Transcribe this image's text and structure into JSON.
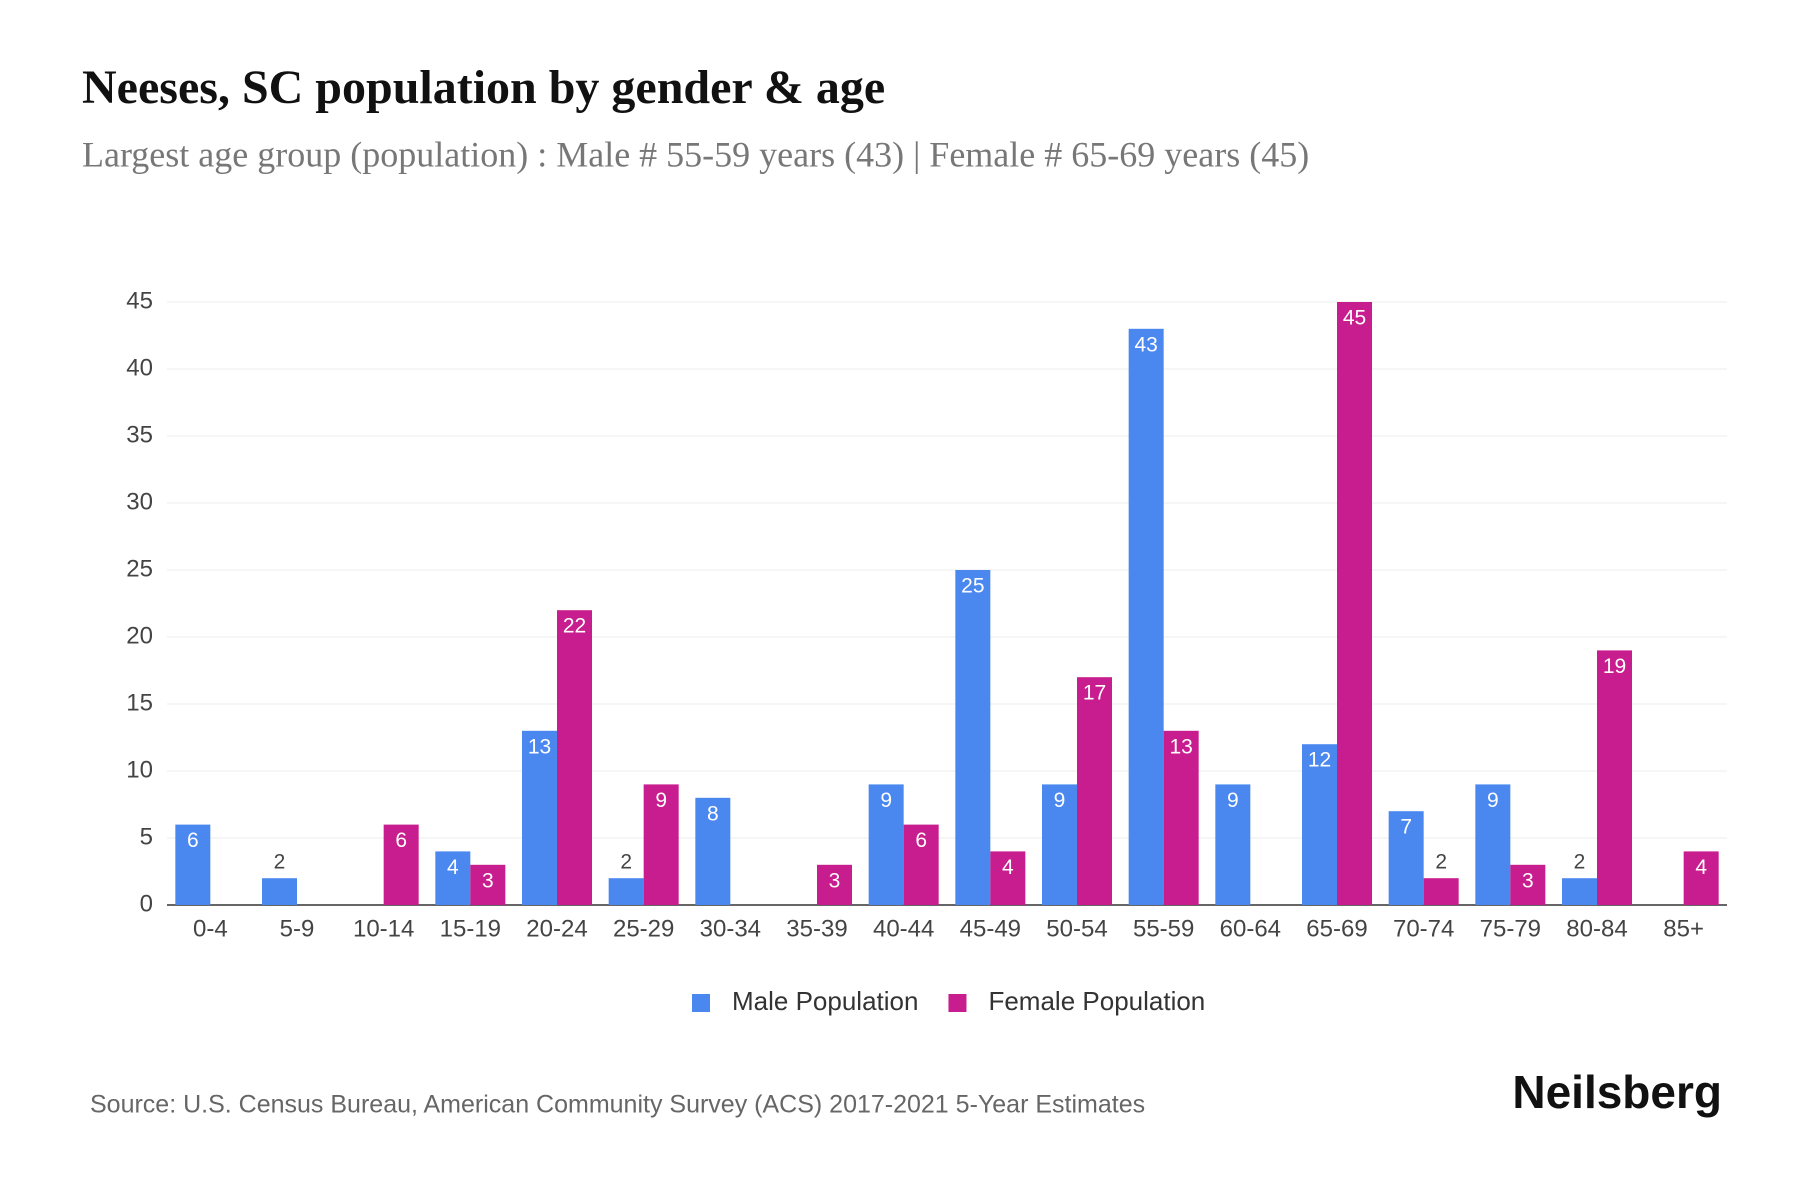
{
  "chart_data": {
    "type": "bar",
    "title": "Neeses, SC population by gender & age",
    "subtitle": "Largest age group (population) : Male # 55-59 years (43) | Female # 65-69 years (45)",
    "categories": [
      "0-4",
      "5-9",
      "10-14",
      "15-19",
      "20-24",
      "25-29",
      "30-34",
      "35-39",
      "40-44",
      "45-49",
      "50-54",
      "55-59",
      "60-64",
      "65-69",
      "70-74",
      "75-79",
      "80-84",
      "85+"
    ],
    "series": [
      {
        "name": "Male Population",
        "color": "#4a88f0",
        "values": [
          6,
          2,
          null,
          4,
          13,
          2,
          8,
          null,
          9,
          25,
          9,
          43,
          9,
          12,
          7,
          9,
          2,
          null
        ]
      },
      {
        "name": "Female Population",
        "color": "#c81d8e",
        "values": [
          null,
          null,
          6,
          3,
          22,
          9,
          null,
          3,
          6,
          4,
          17,
          13,
          null,
          45,
          2,
          3,
          19,
          4
        ]
      }
    ],
    "ylim": [
      0,
      45
    ],
    "yticks": [
      0,
      5,
      10,
      15,
      20,
      25,
      30,
      35,
      40,
      45
    ],
    "grid": true,
    "legend": "bottom",
    "source": "Source: U.S. Census Bureau, American Community Survey (ACS) 2017-2021 5-Year Estimates",
    "brand": "Neilsberg"
  }
}
